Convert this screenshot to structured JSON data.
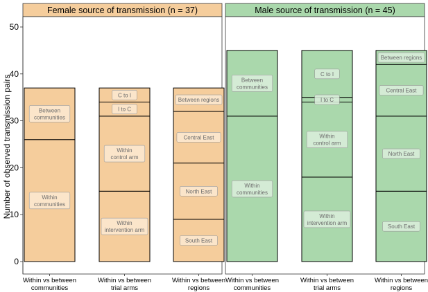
{
  "chart_data": {
    "type": "bar",
    "ylabel": "Number of observed transmission pairs",
    "ylim": [
      0,
      52
    ],
    "yticks": [
      0,
      10,
      20,
      30,
      40,
      50
    ],
    "categories": [
      "Within vs between\ncommunities",
      "Within vs between\ntrial arms",
      "Within vs between\nregions"
    ],
    "colors": {
      "female": "#f5cd9c",
      "male": "#aad8ac",
      "label_bg_female": "#fbe9d2",
      "label_bg_male": "#dcefdc"
    },
    "panels": [
      {
        "title": "Female source of transmission (n = 37)",
        "key": "female",
        "bars": [
          {
            "segments": [
              {
                "label": "Within\ncommunities",
                "value": 26
              },
              {
                "label": "Between\ncommunities",
                "value": 11
              }
            ]
          },
          {
            "segments": [
              {
                "label": "Within\nintervention arm",
                "value": 15
              },
              {
                "label": "Within\ncontrol arm",
                "value": 16
              },
              {
                "label": "I to C",
                "value": 3
              },
              {
                "label": "C to I",
                "value": 3
              }
            ]
          },
          {
            "segments": [
              {
                "label": "South East",
                "value": 9
              },
              {
                "label": "North East",
                "value": 12
              },
              {
                "label": "Central East",
                "value": 11
              },
              {
                "label": "Between regions",
                "value": 5
              }
            ]
          }
        ]
      },
      {
        "title": "Male source of transmission (n = 45)",
        "key": "male",
        "bars": [
          {
            "segments": [
              {
                "label": "Within\ncommunities",
                "value": 31
              },
              {
                "label": "Between\ncommunities",
                "value": 14
              }
            ]
          },
          {
            "segments": [
              {
                "label": "Within\nintervention arm",
                "value": 18
              },
              {
                "label": "Within\ncontrol arm",
                "value": 16
              },
              {
                "label": "I to C",
                "value": 1
              },
              {
                "label": "C to I",
                "value": 10
              }
            ]
          },
          {
            "segments": [
              {
                "label": "South East",
                "value": 15
              },
              {
                "label": "North East",
                "value": 16
              },
              {
                "label": "Central East",
                "value": 11
              },
              {
                "label": "Between regions",
                "value": 3
              }
            ]
          }
        ]
      }
    ]
  }
}
